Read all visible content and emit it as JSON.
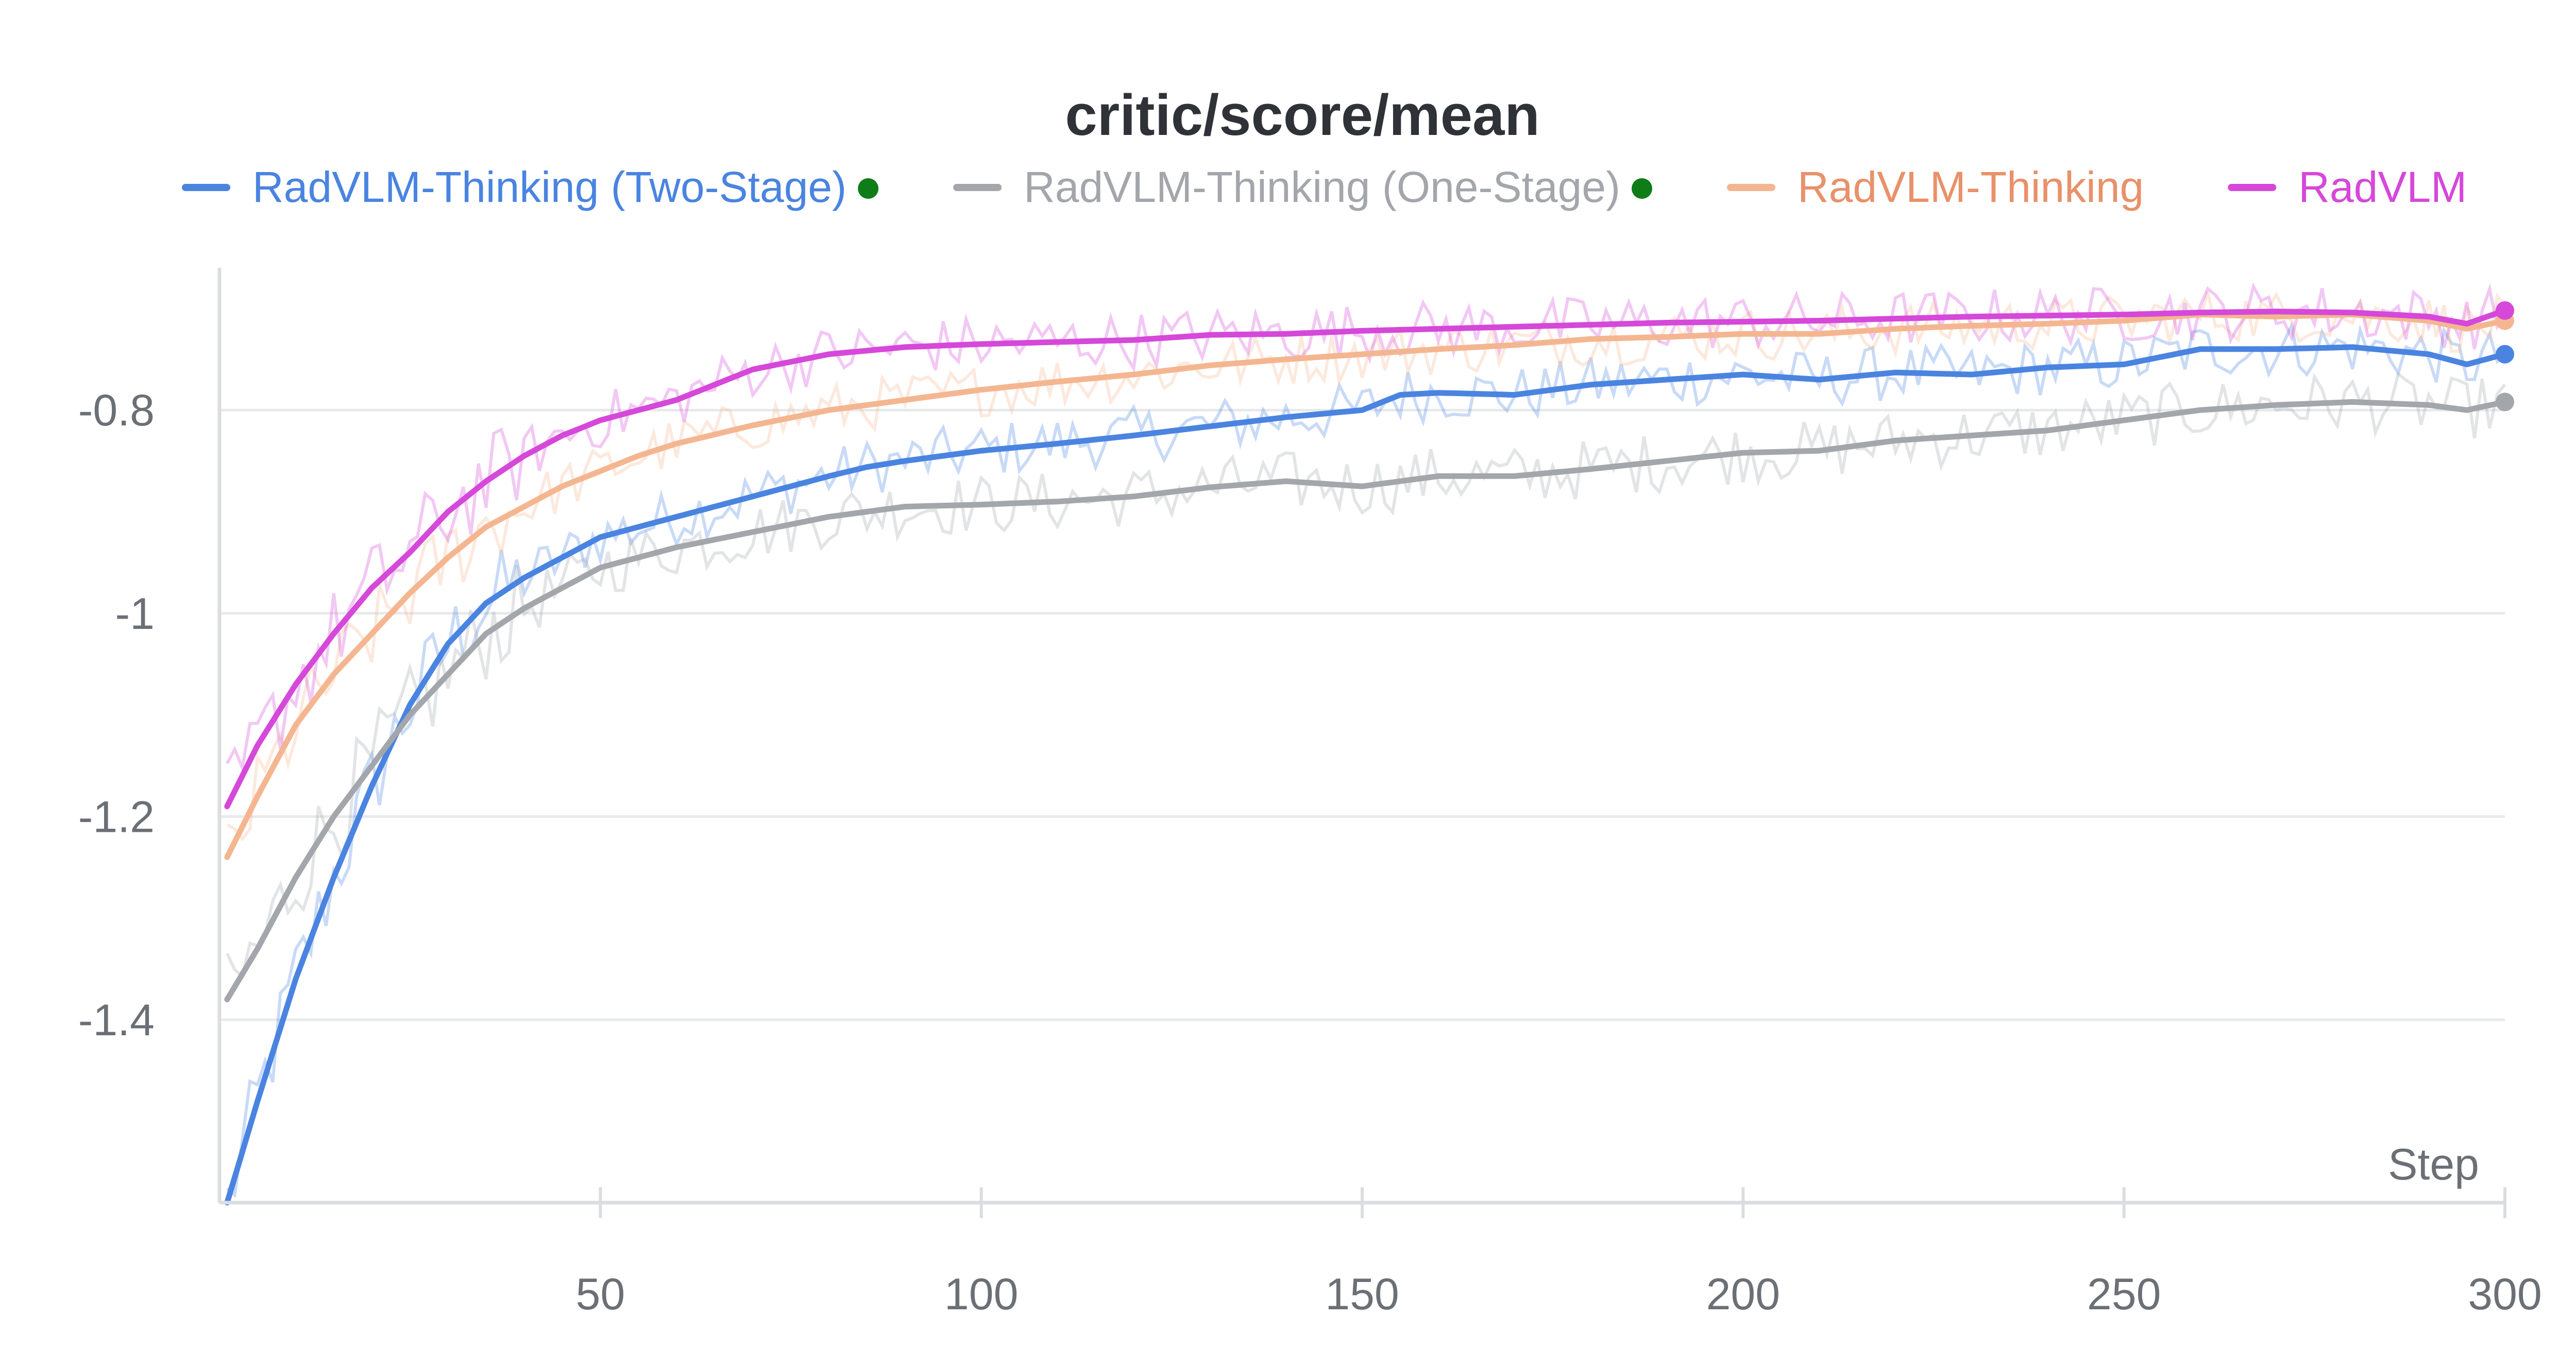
{
  "chart_data": {
    "type": "line",
    "title": "critic/score/mean",
    "xlabel": "Step",
    "ylabel": "",
    "xlim": [
      0,
      300
    ],
    "ylim": [
      -1.58,
      -0.66
    ],
    "x_ticks": [
      50,
      100,
      150,
      200,
      250,
      300
    ],
    "y_ticks": [
      -1.4,
      -1.2,
      -1,
      -0.8
    ],
    "y_tick_labels": [
      "-1.4",
      "-1.2",
      "-1",
      "-0.8"
    ],
    "grid": "horizontal",
    "legend_position": "top",
    "series": [
      {
        "name": "RadVLM-Thinking (Two-Stage)",
        "color": "#4a84e0",
        "marker": "green-dot",
        "smoothed": [
          [
            1,
            -1.58
          ],
          [
            5,
            -1.48
          ],
          [
            10,
            -1.36
          ],
          [
            15,
            -1.26
          ],
          [
            20,
            -1.17
          ],
          [
            25,
            -1.09
          ],
          [
            30,
            -1.03
          ],
          [
            35,
            -0.99
          ],
          [
            40,
            -0.965
          ],
          [
            45,
            -0.945
          ],
          [
            50,
            -0.925
          ],
          [
            55,
            -0.915
          ],
          [
            60,
            -0.905
          ],
          [
            65,
            -0.895
          ],
          [
            70,
            -0.885
          ],
          [
            75,
            -0.875
          ],
          [
            80,
            -0.865
          ],
          [
            85,
            -0.856
          ],
          [
            90,
            -0.85
          ],
          [
            95,
            -0.845
          ],
          [
            100,
            -0.84
          ],
          [
            110,
            -0.833
          ],
          [
            120,
            -0.825
          ],
          [
            130,
            -0.816
          ],
          [
            140,
            -0.807
          ],
          [
            150,
            -0.8
          ],
          [
            155,
            -0.785
          ],
          [
            160,
            -0.783
          ],
          [
            170,
            -0.785
          ],
          [
            180,
            -0.775
          ],
          [
            190,
            -0.77
          ],
          [
            200,
            -0.765
          ],
          [
            210,
            -0.77
          ],
          [
            220,
            -0.763
          ],
          [
            230,
            -0.765
          ],
          [
            240,
            -0.758
          ],
          [
            250,
            -0.755
          ],
          [
            260,
            -0.74
          ],
          [
            270,
            -0.74
          ],
          [
            280,
            -0.738
          ],
          [
            290,
            -0.745
          ],
          [
            295,
            -0.755
          ],
          [
            300,
            -0.745
          ]
        ]
      },
      {
        "name": "RadVLM-Thinking (One-Stage)",
        "color": "#a3a6ab",
        "marker": "green-dot",
        "smoothed": [
          [
            1,
            -1.38
          ],
          [
            5,
            -1.33
          ],
          [
            10,
            -1.26
          ],
          [
            15,
            -1.2
          ],
          [
            20,
            -1.15
          ],
          [
            25,
            -1.1
          ],
          [
            30,
            -1.06
          ],
          [
            35,
            -1.02
          ],
          [
            40,
            -0.995
          ],
          [
            45,
            -0.975
          ],
          [
            50,
            -0.955
          ],
          [
            55,
            -0.945
          ],
          [
            60,
            -0.935
          ],
          [
            70,
            -0.92
          ],
          [
            80,
            -0.905
          ],
          [
            90,
            -0.895
          ],
          [
            100,
            -0.893
          ],
          [
            110,
            -0.89
          ],
          [
            120,
            -0.885
          ],
          [
            130,
            -0.876
          ],
          [
            140,
            -0.87
          ],
          [
            150,
            -0.875
          ],
          [
            160,
            -0.865
          ],
          [
            170,
            -0.865
          ],
          [
            180,
            -0.858
          ],
          [
            190,
            -0.85
          ],
          [
            200,
            -0.842
          ],
          [
            210,
            -0.84
          ],
          [
            220,
            -0.83
          ],
          [
            230,
            -0.825
          ],
          [
            240,
            -0.82
          ],
          [
            250,
            -0.81
          ],
          [
            260,
            -0.8
          ],
          [
            270,
            -0.795
          ],
          [
            280,
            -0.792
          ],
          [
            290,
            -0.795
          ],
          [
            295,
            -0.8
          ],
          [
            300,
            -0.792
          ]
        ]
      },
      {
        "name": "RadVLM-Thinking",
        "color": "#f4b690",
        "text_color": "#e8916a",
        "smoothed": [
          [
            1,
            -1.24
          ],
          [
            5,
            -1.18
          ],
          [
            10,
            -1.11
          ],
          [
            15,
            -1.06
          ],
          [
            20,
            -1.02
          ],
          [
            25,
            -0.98
          ],
          [
            30,
            -0.945
          ],
          [
            35,
            -0.915
          ],
          [
            40,
            -0.895
          ],
          [
            45,
            -0.875
          ],
          [
            50,
            -0.86
          ],
          [
            55,
            -0.845
          ],
          [
            60,
            -0.833
          ],
          [
            70,
            -0.815
          ],
          [
            80,
            -0.8
          ],
          [
            90,
            -0.79
          ],
          [
            100,
            -0.78
          ],
          [
            110,
            -0.772
          ],
          [
            120,
            -0.765
          ],
          [
            130,
            -0.756
          ],
          [
            140,
            -0.75
          ],
          [
            150,
            -0.745
          ],
          [
            160,
            -0.74
          ],
          [
            170,
            -0.736
          ],
          [
            180,
            -0.73
          ],
          [
            190,
            -0.728
          ],
          [
            200,
            -0.725
          ],
          [
            210,
            -0.725
          ],
          [
            220,
            -0.72
          ],
          [
            230,
            -0.717
          ],
          [
            240,
            -0.715
          ],
          [
            250,
            -0.712
          ],
          [
            260,
            -0.706
          ],
          [
            270,
            -0.708
          ],
          [
            280,
            -0.706
          ],
          [
            290,
            -0.712
          ],
          [
            295,
            -0.72
          ],
          [
            300,
            -0.712
          ]
        ]
      },
      {
        "name": "RadVLM",
        "color": "#d548d9",
        "smoothed": [
          [
            1,
            -1.19
          ],
          [
            5,
            -1.13
          ],
          [
            10,
            -1.07
          ],
          [
            15,
            -1.02
          ],
          [
            20,
            -0.975
          ],
          [
            25,
            -0.94
          ],
          [
            30,
            -0.9
          ],
          [
            35,
            -0.87
          ],
          [
            40,
            -0.845
          ],
          [
            45,
            -0.825
          ],
          [
            50,
            -0.81
          ],
          [
            55,
            -0.8
          ],
          [
            60,
            -0.79
          ],
          [
            70,
            -0.76
          ],
          [
            80,
            -0.745
          ],
          [
            90,
            -0.738
          ],
          [
            100,
            -0.735
          ],
          [
            110,
            -0.733
          ],
          [
            120,
            -0.731
          ],
          [
            130,
            -0.726
          ],
          [
            140,
            -0.725
          ],
          [
            150,
            -0.722
          ],
          [
            160,
            -0.72
          ],
          [
            170,
            -0.718
          ],
          [
            180,
            -0.716
          ],
          [
            190,
            -0.714
          ],
          [
            200,
            -0.713
          ],
          [
            210,
            -0.712
          ],
          [
            220,
            -0.71
          ],
          [
            230,
            -0.708
          ],
          [
            240,
            -0.707
          ],
          [
            250,
            -0.706
          ],
          [
            260,
            -0.704
          ],
          [
            270,
            -0.703
          ],
          [
            280,
            -0.704
          ],
          [
            290,
            -0.708
          ],
          [
            295,
            -0.715
          ],
          [
            300,
            -0.702
          ]
        ]
      }
    ]
  }
}
